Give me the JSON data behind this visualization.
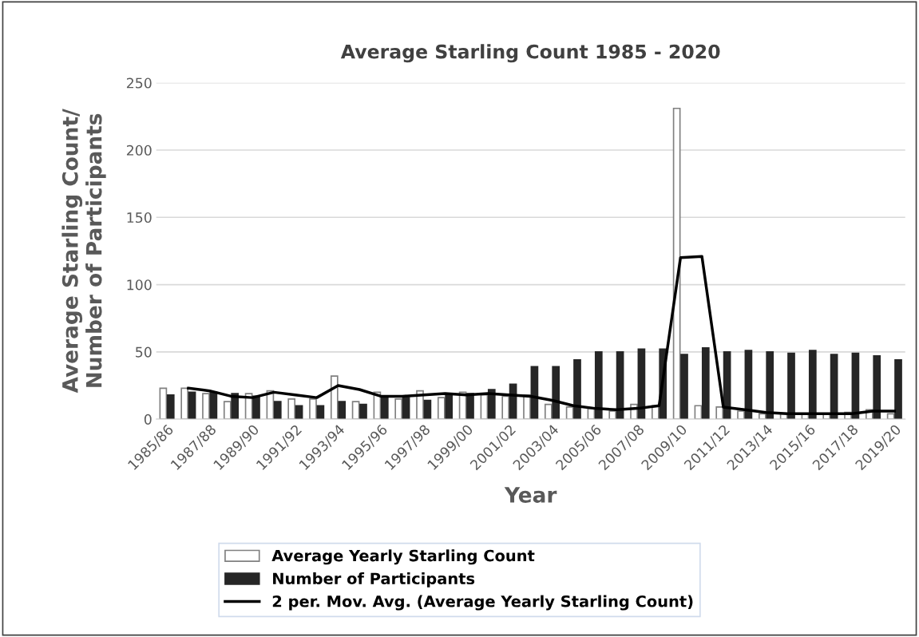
{
  "chart_data": {
    "type": "bar",
    "title": "Average Starling Count 1985 - 2020",
    "xlabel": "Year",
    "ylabel": "Average Starling Count/\nNumber of Participants",
    "categories": [
      "1985/86",
      null,
      "1987/88",
      null,
      "1989/90",
      null,
      "1991/92",
      null,
      "1993/94",
      null,
      "1995/96",
      null,
      "1997/98",
      null,
      "1999/00",
      null,
      "2001/02",
      null,
      "2003/04",
      null,
      "2005/06",
      null,
      "2007/08",
      null,
      "2009/10",
      null,
      "2011/12",
      null,
      "2013/14",
      null,
      "2015/16",
      null,
      "2017/18",
      null,
      "2019/20"
    ],
    "series": [
      {
        "name": "Average Yearly Starling Count",
        "color": "#ffffff",
        "values": [
          23,
          23,
          19,
          13,
          19,
          21,
          15,
          15,
          32,
          13,
          20,
          15,
          21,
          16,
          20,
          18,
          17,
          18,
          11,
          9,
          8,
          6,
          11,
          10,
          231,
          10,
          9,
          6,
          4,
          4,
          4,
          4,
          5,
          7,
          4
        ]
      },
      {
        "name": "Number of Participants",
        "color": "#262626",
        "values": [
          18,
          20,
          20,
          19,
          17,
          13,
          10,
          10,
          13,
          11,
          16,
          16,
          14,
          19,
          19,
          22,
          26,
          39,
          39,
          44,
          50,
          50,
          52,
          52,
          48,
          53,
          50,
          51,
          50,
          49,
          51,
          48,
          49,
          47,
          44
        ]
      },
      {
        "name": "2 per. Mov. Avg. (Average Yearly Starling Count)",
        "type": "line",
        "color": "#000000",
        "values": [
          null,
          23,
          21,
          17,
          16,
          20,
          18,
          16,
          25,
          22,
          17,
          17,
          18,
          19,
          18,
          19,
          18,
          17,
          14,
          10,
          8,
          7,
          8,
          10,
          120,
          121,
          9,
          7,
          5,
          4,
          4,
          4,
          4,
          6,
          6
        ]
      }
    ],
    "ylim": [
      0,
      250
    ],
    "yticks": [
      0,
      50,
      100,
      150,
      200,
      250
    ],
    "grid": "y",
    "legend": "bottom",
    "line_style": "solid",
    "marker": "none"
  }
}
